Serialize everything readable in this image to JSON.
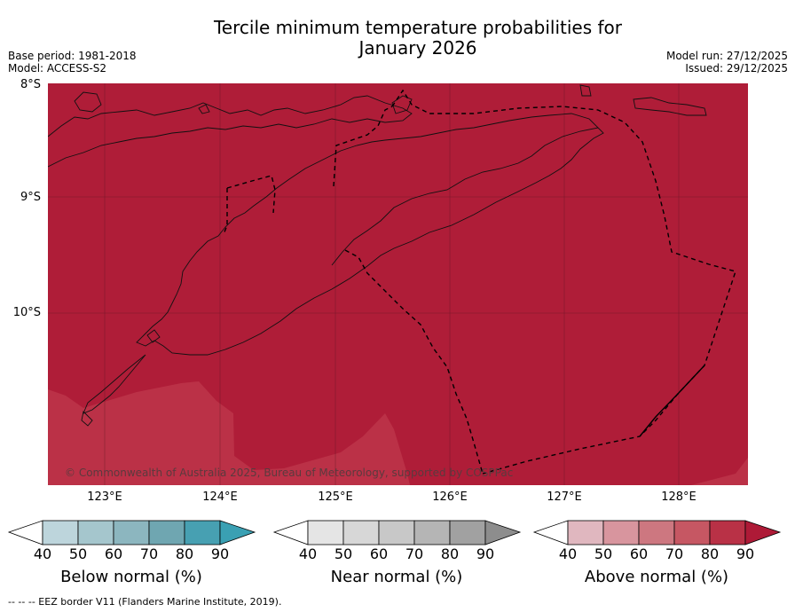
{
  "title_line1": "Tercile minimum temperature probabilities for",
  "title_line2": "January 2026",
  "base_period": "Base period: 1981-2018",
  "model": "Model: ACCESS-S2",
  "model_run": "Model run: 27/12/2025",
  "issued": "Issued: 29/12/2025",
  "lat_labels": [
    "8°S",
    "9°S",
    "10°S"
  ],
  "lon_labels": [
    "123°E",
    "124°E",
    "125°E",
    "126°E",
    "127°E",
    "128°E"
  ],
  "copyright": "© Commonwealth of Australia 2025, Bureau of Meteorology, supported by COSPPac",
  "colorbars": [
    {
      "label": "Below normal (%)",
      "ticks": [
        "40",
        "50",
        "60",
        "70",
        "80",
        "90"
      ],
      "colors": [
        "#bdd5dc",
        "#a5c6cd",
        "#8cb6bf",
        "#6fa6b1",
        "#47a0b2",
        "#3aa0b3"
      ]
    },
    {
      "label": "Near normal (%)",
      "ticks": [
        "40",
        "50",
        "60",
        "70",
        "80",
        "90"
      ],
      "colors": [
        "#e5e5e5",
        "#d7d7d7",
        "#c8c8c8",
        "#b5b5b5",
        "#a1a1a1",
        "#8d8d8d"
      ]
    },
    {
      "label": "Above normal (%)",
      "ticks": [
        "40",
        "50",
        "60",
        "70",
        "80",
        "90"
      ],
      "colors": [
        "#e0b7bf",
        "#d8959e",
        "#cd7780",
        "#c65763",
        "#b93146",
        "#ae1a37"
      ]
    }
  ],
  "footnote": "--  --  -- EEZ border V11 (Flanders Marine Institute, 2019).",
  "colors": {
    "above_90": "#af1d38",
    "above_80": "#bb3147"
  }
}
